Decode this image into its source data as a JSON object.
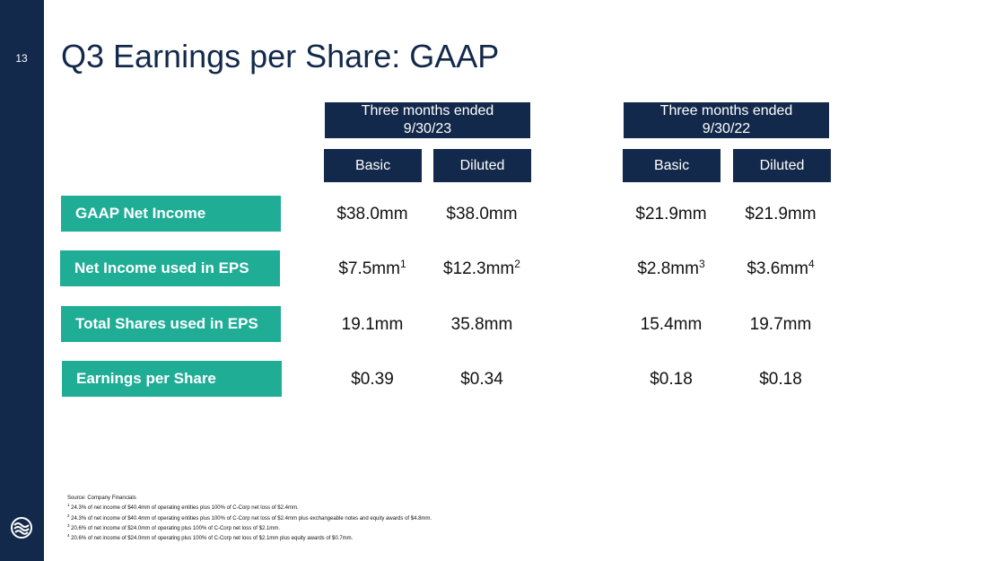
{
  "slide": {
    "number": "13",
    "title": "Q3 Earnings per Share: GAAP"
  },
  "periods": [
    {
      "label": "Three months ended\n9/30/23",
      "line1": "Three months ended",
      "line2": "9/30/23",
      "sub": [
        "Basic",
        "Diluted"
      ]
    },
    {
      "label": "Three months ended\n9/30/22",
      "line1": "Three months ended",
      "line2": "9/30/22",
      "sub": [
        "Basic",
        "Diluted"
      ]
    }
  ],
  "rows": [
    {
      "label": "GAAP Net Income",
      "values": [
        "$38.0mm",
        "$38.0mm",
        "$21.9mm",
        "$21.9mm"
      ],
      "notes": [
        "",
        "",
        "",
        ""
      ]
    },
    {
      "label": "Net Income used in EPS",
      "values": [
        "$7.5mm",
        "$12.3mm",
        "$2.8mm",
        "$3.6mm"
      ],
      "notes": [
        "1",
        "2",
        "3",
        "4"
      ]
    },
    {
      "label": "Total Shares used in EPS",
      "values": [
        "19.1mm",
        "35.8mm",
        "15.4mm",
        "19.7mm"
      ],
      "notes": [
        "",
        "",
        "",
        ""
      ]
    },
    {
      "label": "Earnings per Share",
      "values": [
        "$0.39",
        "$0.34",
        "$0.18",
        "$0.18"
      ],
      "notes": [
        "",
        "",
        "",
        ""
      ]
    }
  ],
  "footnotes": {
    "source": "Source: Company Financials",
    "items": [
      {
        "mark": "1",
        "text": " 24.3% of net income of $40.4mm of operating entities plus 100% of C-Corp net loss of $2.4mm."
      },
      {
        "mark": "2",
        "text": " 24.3% of net income of $40.4mm of operating entities plus 100% of C-Corp net loss of $2.4mm plus exchangeable notes and equity awards of $4.8mm."
      },
      {
        "mark": "3",
        "text": " 20.6% of net income of $24.0mm of operating plus 100% of C-Corp net loss of $2.1mm."
      },
      {
        "mark": "4",
        "text": " 20.6% of net income of $24.0mm of operating plus 100% of C-Corp net loss of $2.1mm plus equity awards of $0.7mm."
      }
    ]
  },
  "colors": {
    "navy": "#13294b",
    "teal": "#1fad96"
  },
  "icons": {
    "logo": "company-logo-icon"
  }
}
